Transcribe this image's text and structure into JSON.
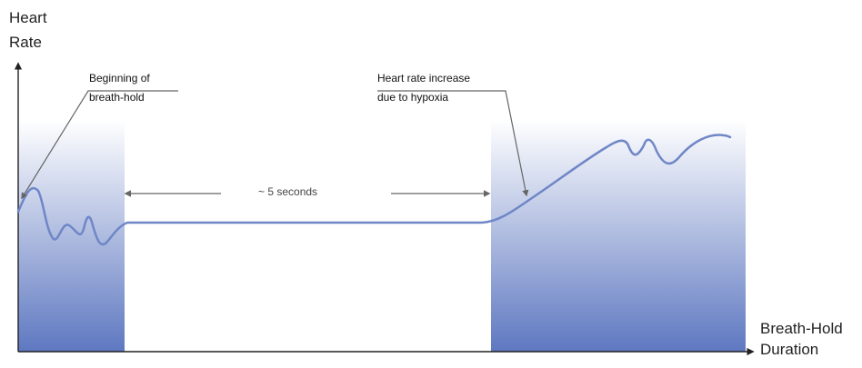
{
  "labels": {
    "y_axis_line1": "Heart",
    "y_axis_line2": "Rate",
    "x_axis_line1": "Breath-Hold",
    "x_axis_line2": "Duration",
    "annotation_start_line1": "Beginning of",
    "annotation_start_line2": "breath-hold",
    "annotation_increase_line1": "Heart rate increase",
    "annotation_increase_line2": "due to hypoxia",
    "duration_label": "~ 5 seconds"
  },
  "colors": {
    "axis": "#222222",
    "line": "#6f86c7",
    "shade_top": "#ffffff",
    "shade_bottom": "#5e78c1",
    "annotation": "#666666"
  }
}
